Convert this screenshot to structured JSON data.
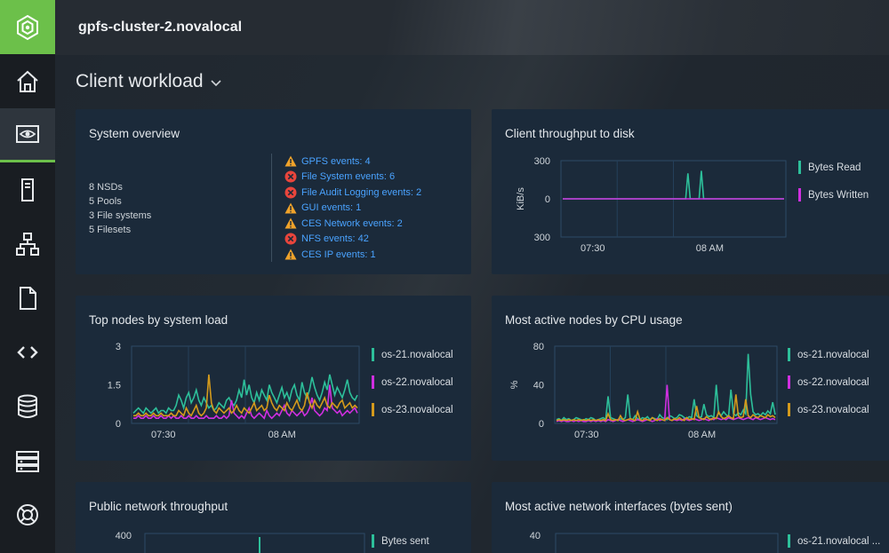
{
  "topbar": {
    "cluster_name": "gpfs-cluster-2.novalocal"
  },
  "page": {
    "title": "Client workload",
    "chevron": "⌄"
  },
  "sidebar": {
    "items": [
      {
        "name": "home-icon",
        "active": false
      },
      {
        "name": "monitoring-icon",
        "active": true
      },
      {
        "name": "server-icon",
        "active": false
      },
      {
        "name": "network-topology-icon",
        "active": false
      },
      {
        "name": "file-icon",
        "active": false
      },
      {
        "name": "code-icon",
        "active": false
      },
      {
        "name": "database-icon",
        "active": false
      },
      {
        "name": "storage-rack-icon",
        "active": false
      },
      {
        "name": "help-lifebuoy-icon",
        "active": false
      }
    ]
  },
  "overview": {
    "title": "System overview",
    "stats": [
      "8 NSDs",
      "5 Pools",
      "3 File systems",
      "5 Filesets"
    ],
    "events": [
      {
        "label": "GPFS events: 4",
        "severity": "warning"
      },
      {
        "label": "File System events: 6",
        "severity": "error"
      },
      {
        "label": "File Audit Logging events: 2",
        "severity": "error"
      },
      {
        "label": "GUI events: 1",
        "severity": "warning"
      },
      {
        "label": "CES Network events: 2",
        "severity": "warning"
      },
      {
        "label": "NFS events: 42",
        "severity": "error"
      },
      {
        "label": "CES IP events: 1",
        "severity": "warning"
      }
    ]
  },
  "colors": {
    "accent": "#6cc04a",
    "teal": "#2dbf9a",
    "magenta": "#d02fe0",
    "orange": "#d49a1c",
    "warning": "#f0a32a",
    "error": "#e8453c",
    "link": "#4aa3ff"
  },
  "chart_data": [
    {
      "type": "line",
      "title": "Client throughput to disk",
      "ylabel": "KiB/s",
      "y_ticks": [
        "300",
        "0",
        "300"
      ],
      "x_ticks": [
        "07:30",
        "08 AM"
      ],
      "series": [
        {
          "name": "Bytes Read",
          "color": "#2dbf9a",
          "values": [
            0,
            0,
            0,
            0,
            0,
            0,
            0,
            0,
            0,
            0,
            0,
            0,
            0,
            0,
            0,
            0,
            0,
            0,
            0,
            0,
            0,
            0,
            0,
            0,
            0,
            0,
            0,
            0,
            0,
            0,
            0,
            0,
            0,
            0,
            0,
            0,
            0,
            0,
            0,
            0,
            0,
            0,
            0,
            0,
            0,
            0,
            0,
            0,
            0,
            0,
            0,
            0,
            0,
            0,
            0,
            0,
            200,
            0,
            0,
            0,
            0,
            0,
            220,
            0,
            0,
            0,
            0,
            0,
            0,
            0,
            0,
            0,
            0,
            0,
            0,
            0,
            0,
            0,
            0,
            0,
            0,
            0,
            0,
            0,
            0,
            0,
            0,
            0,
            0,
            0,
            0,
            0,
            0,
            0,
            0,
            0,
            0,
            0,
            0,
            0
          ]
        },
        {
          "name": "Bytes Written",
          "color": "#d02fe0",
          "values": [
            0,
            0,
            0,
            0,
            0,
            0,
            0,
            0,
            0,
            0,
            0,
            0,
            0,
            0,
            0,
            0,
            0,
            0,
            0,
            0,
            0,
            0,
            0,
            0,
            0,
            0,
            0,
            0,
            0,
            0,
            0,
            0,
            0,
            0,
            0,
            0,
            0,
            0,
            0,
            0,
            0,
            0,
            0,
            0,
            0,
            0,
            0,
            0,
            0,
            0,
            0,
            0,
            0,
            0,
            0,
            0,
            0,
            0,
            0,
            0,
            0,
            0,
            0,
            0,
            0,
            0,
            0,
            0,
            0,
            0,
            0,
            0,
            0,
            0,
            0,
            0,
            0,
            0,
            0,
            0,
            0,
            0,
            0,
            0,
            0,
            0,
            0,
            0,
            0,
            0,
            0,
            0,
            0,
            0,
            0,
            0,
            0,
            0,
            0,
            0
          ]
        }
      ],
      "ylim": [
        -300,
        300
      ]
    },
    {
      "type": "line",
      "title": "Top nodes by system load",
      "ylabel": "",
      "y_ticks": [
        "3",
        "1.5",
        "0"
      ],
      "x_ticks": [
        "07:30",
        "08 AM"
      ],
      "ylim": [
        0,
        3
      ],
      "series": [
        {
          "name": "os-21.novalocal",
          "color": "#2dbf9a",
          "values": [
            0.4,
            0.5,
            0.6,
            0.5,
            0.4,
            0.6,
            0.5,
            0.4,
            0.5,
            0.6,
            0.4,
            0.5,
            0.5,
            0.4,
            0.6,
            0.5,
            0.5,
            0.7,
            1.1,
            0.9,
            0.6,
            1.0,
            1.2,
            0.8,
            1.0,
            1.3,
            0.9,
            0.7,
            1.0,
            0.8,
            0.6,
            0.7,
            0.5,
            0.6,
            0.8,
            0.7,
            0.6,
            0.9,
            1.0,
            0.8,
            0.7,
            0.9,
            1.3,
            1.0,
            1.7,
            1.1,
            1.5,
            1.0,
            0.8,
            1.2,
            0.9,
            1.3,
            1.1,
            0.9,
            1.5,
            1.2,
            1.0,
            0.8,
            1.1,
            1.4,
            1.0,
            1.2,
            0.9,
            1.3,
            1.5,
            1.1,
            0.9,
            1.6,
            1.2,
            1.0,
            1.3,
            1.8,
            1.4,
            1.1,
            0.9,
            1.2,
            1.6,
            1.3,
            1.9,
            1.5,
            1.1,
            1.4,
            1.2,
            1.0,
            1.3,
            1.7,
            1.2,
            1.0,
            0.9,
            1.1
          ]
        },
        {
          "name": "os-22.novalocal",
          "color": "#d02fe0",
          "values": [
            0.2,
            0.2,
            0.3,
            0.2,
            0.2,
            0.3,
            0.2,
            0.2,
            0.3,
            0.2,
            0.2,
            0.3,
            0.2,
            0.2,
            0.3,
            0.2,
            0.3,
            0.2,
            0.2,
            0.3,
            0.2,
            0.2,
            0.3,
            0.2,
            0.2,
            0.3,
            0.2,
            0.2,
            0.2,
            0.3,
            0.2,
            0.2,
            0.2,
            0.3,
            0.2,
            0.2,
            0.3,
            0.2,
            0.3,
            0.9,
            0.4,
            0.3,
            0.2,
            0.3,
            0.2,
            0.4,
            0.6,
            0.3,
            0.2,
            0.3,
            0.4,
            0.3,
            0.2,
            0.5,
            0.3,
            0.2,
            0.3,
            0.4,
            0.3,
            0.5,
            0.7,
            0.4,
            0.3,
            0.5,
            0.4,
            0.3,
            0.4,
            0.5,
            0.3,
            0.4,
            0.6,
            1.0,
            0.5,
            0.4,
            0.3,
            0.4,
            0.6,
            0.5,
            1.5,
            0.6,
            0.5,
            0.4,
            0.5,
            0.3,
            0.4,
            0.5,
            0.4,
            0.5,
            0.6,
            0.4
          ]
        },
        {
          "name": "os-23.novalocal",
          "color": "#d49a1c",
          "values": [
            0.3,
            0.3,
            0.4,
            0.3,
            0.3,
            0.4,
            0.3,
            0.3,
            0.4,
            0.3,
            0.3,
            0.4,
            0.3,
            0.3,
            0.3,
            0.4,
            0.3,
            0.3,
            0.5,
            0.4,
            0.3,
            0.6,
            0.4,
            0.3,
            0.5,
            0.7,
            0.4,
            0.3,
            0.4,
            0.6,
            1.9,
            0.8,
            0.5,
            0.4,
            0.6,
            0.5,
            0.4,
            0.5,
            0.6,
            0.4,
            0.5,
            0.7,
            0.5,
            0.4,
            0.6,
            0.5,
            0.4,
            0.6,
            0.8,
            0.5,
            0.6,
            0.7,
            0.5,
            0.6,
            1.1,
            0.8,
            0.6,
            0.5,
            0.7,
            0.6,
            0.5,
            0.8,
            0.6,
            0.5,
            0.7,
            0.9,
            0.6,
            0.5,
            0.7,
            1.2,
            0.8,
            0.6,
            0.9,
            0.7,
            0.6,
            0.8,
            1.0,
            0.7,
            0.6,
            0.8,
            0.7,
            0.6,
            0.8,
            0.9,
            0.6,
            0.7,
            0.8,
            0.6,
            0.7,
            0.6
          ]
        }
      ]
    },
    {
      "type": "line",
      "title": "Most active nodes by CPU usage",
      "ylabel": "%",
      "y_ticks": [
        "80",
        "40",
        "0"
      ],
      "x_ticks": [
        "07:30",
        "08 AM"
      ],
      "ylim": [
        0,
        80
      ],
      "series": [
        {
          "name": "os-21.novalocal",
          "color": "#2dbf9a",
          "values": [
            4,
            5,
            3,
            6,
            4,
            5,
            3,
            4,
            6,
            5,
            4,
            3,
            5,
            4,
            6,
            5,
            3,
            4,
            5,
            6,
            4,
            28,
            6,
            5,
            4,
            3,
            5,
            4,
            6,
            30,
            5,
            4,
            8,
            5,
            4,
            6,
            5,
            7,
            4,
            6,
            5,
            4,
            9,
            6,
            5,
            4,
            8,
            7,
            5,
            6,
            9,
            8,
            6,
            5,
            7,
            6,
            25,
            8,
            6,
            7,
            20,
            9,
            7,
            8,
            6,
            40,
            10,
            8,
            12,
            9,
            7,
            35,
            10,
            8,
            11,
            9,
            14,
            10,
            72,
            30,
            12,
            9,
            10,
            8,
            11,
            9,
            13,
            10,
            22,
            9
          ]
        },
        {
          "name": "os-22.novalocal",
          "color": "#d02fe0",
          "values": [
            2,
            3,
            2,
            3,
            2,
            2,
            3,
            2,
            3,
            2,
            3,
            2,
            2,
            3,
            2,
            3,
            2,
            3,
            2,
            3,
            2,
            4,
            3,
            2,
            3,
            4,
            3,
            2,
            3,
            4,
            3,
            2,
            3,
            4,
            3,
            2,
            3,
            4,
            3,
            2,
            3,
            5,
            3,
            4,
            3,
            40,
            4,
            3,
            4,
            3,
            4,
            3,
            5,
            4,
            3,
            4,
            5,
            4,
            3,
            4,
            5,
            4,
            3,
            5,
            4,
            6,
            5,
            4,
            5,
            4,
            6,
            5,
            4,
            5,
            6,
            5,
            4,
            5,
            6,
            5,
            4,
            6,
            5,
            4,
            5,
            6,
            5,
            4,
            5,
            4
          ]
        },
        {
          "name": "os-23.novalocal",
          "color": "#d49a1c",
          "values": [
            3,
            4,
            3,
            4,
            3,
            4,
            3,
            4,
            3,
            4,
            3,
            4,
            3,
            4,
            3,
            4,
            3,
            4,
            3,
            4,
            3,
            10,
            4,
            3,
            4,
            3,
            8,
            4,
            3,
            4,
            5,
            4,
            3,
            12,
            4,
            3,
            5,
            4,
            3,
            6,
            4,
            3,
            5,
            4,
            3,
            6,
            4,
            3,
            5,
            4,
            6,
            4,
            3,
            6,
            4,
            5,
            4,
            18,
            6,
            5,
            4,
            7,
            5,
            4,
            6,
            5,
            12,
            7,
            5,
            6,
            8,
            6,
            5,
            30,
            8,
            6,
            7,
            25,
            8,
            6,
            9,
            7,
            6,
            8,
            7,
            6,
            9,
            7,
            8,
            6
          ]
        }
      ]
    },
    {
      "type": "line",
      "title": "Public network throughput",
      "y_ticks": [
        "400"
      ],
      "series": [
        {
          "name": "Bytes sent",
          "color": "#2dbf9a"
        }
      ]
    },
    {
      "type": "line",
      "title": "Most active network interfaces (bytes sent)",
      "y_ticks": [
        "40"
      ],
      "series": [
        {
          "name": "os-21.novalocal ...",
          "color": "#2dbf9a"
        }
      ]
    }
  ]
}
